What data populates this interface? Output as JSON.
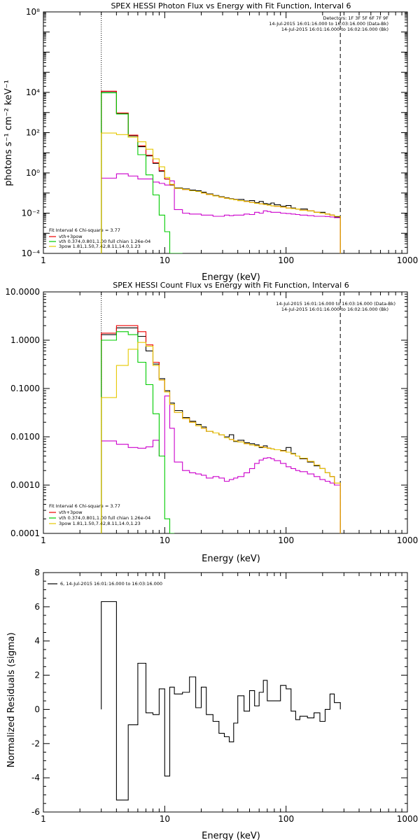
{
  "chart_data": [
    {
      "type": "line",
      "title": "SPEX HESSI Photon Flux vs Energy with Fit Function, Interval 6",
      "xlabel": "Energy (keV)",
      "ylabel": "photons s⁻¹ cm⁻² keV⁻¹",
      "xscale": "log",
      "yscale": "log",
      "xlim": [
        1,
        1000
      ],
      "ylim": [
        0.0001,
        100000000
      ],
      "x_tick_labels": [
        "1",
        "10",
        "100",
        "1000"
      ],
      "y_ticks": [
        0.0001,
        0.01,
        1,
        100,
        10000,
        100000000
      ],
      "y_tick_labels": [
        "10⁻⁴",
        "10⁻²",
        "10⁰",
        "10²",
        "10⁴",
        "10⁸"
      ],
      "vlines": [
        {
          "x": 3,
          "style": "dotted"
        },
        {
          "x": 280,
          "style": "dashed"
        }
      ],
      "header_right": [
        "Detectors: 1F 3F 5F 6F 7F 9F",
        "14-Jul-2015 16:01:16.000 to 16:03:16.000 (Data-Bk)",
        "14-Jul-2015 16:01:16.000 to 16:02:16.000 (Bk)"
      ],
      "fit_label": "Fit Interval 6   Chi-square = 3.77",
      "legend": [
        "vth+3pow",
        "vth 0.374,0.801,1.00  full chian 1.26e-04",
        "3pow 1.81,1.50,7.42,8.11,14.0,1.23"
      ],
      "edges": [
        3,
        4,
        5,
        6,
        7,
        8,
        9,
        10,
        11,
        12,
        14,
        16,
        18,
        20,
        22,
        25,
        28,
        31,
        34,
        37,
        40,
        45,
        50,
        55,
        60,
        65,
        70,
        75,
        80,
        90,
        100,
        110,
        120,
        130,
        150,
        170,
        190,
        210,
        230,
        250,
        280
      ],
      "series": [
        {
          "name": "Data-Bk",
          "color": "#000000",
          "style": "step",
          "values": [
            11000,
            900,
            70,
            20,
            7,
            3,
            1.2,
            0.5,
            0.25,
            0.18,
            0.16,
            0.14,
            0.13,
            0.11,
            0.09,
            0.075,
            0.065,
            0.058,
            0.052,
            0.048,
            0.048,
            0.04,
            0.042,
            0.033,
            0.038,
            0.03,
            0.028,
            0.032,
            0.026,
            0.022,
            0.024,
            0.018,
            0.016,
            0.016,
            0.013,
            0.011,
            0.011,
            0.009,
            0.008,
            0.0065
          ]
        },
        {
          "name": "Bk",
          "color": "#cc00cc",
          "style": "step",
          "values": [
            0.55,
            0.9,
            0.7,
            0.5,
            0.5,
            0.35,
            0.3,
            0.25,
            0.4,
            0.015,
            0.01,
            0.009,
            0.009,
            0.008,
            0.008,
            0.007,
            0.007,
            0.008,
            0.0075,
            0.008,
            0.008,
            0.009,
            0.0085,
            0.011,
            0.01,
            0.013,
            0.012,
            0.011,
            0.011,
            0.01,
            0.0095,
            0.009,
            0.0085,
            0.008,
            0.0075,
            0.007,
            0.007,
            0.0068,
            0.0065,
            0.006
          ]
        },
        {
          "name": "vth+3pow",
          "color": "#ee0000",
          "style": "step",
          "values": [
            11500,
            950,
            75,
            22,
            7.5,
            3.2,
            1.3,
            0.5,
            0.26,
            0.17,
            0.15,
            0.13,
            0.12,
            0.1,
            0.085,
            0.072,
            0.062,
            0.055,
            0.05,
            0.046,
            0.042,
            0.038,
            0.034,
            0.031,
            0.029,
            0.027,
            0.025,
            0.023,
            0.022,
            0.02,
            0.018,
            0.017,
            0.016,
            0.014,
            0.013,
            0.011,
            0.01,
            0.009,
            0.008,
            0.007
          ]
        },
        {
          "name": "vth",
          "color": "#00cc00",
          "style": "step",
          "values": [
            9500,
            850,
            60,
            8,
            0.8,
            0.08,
            0.008,
            0.0012,
            0.0001,
            1e-05
          ]
        },
        {
          "name": "3pow",
          "color": "#e6c800",
          "style": "step",
          "values": [
            95,
            80,
            60,
            35,
            15,
            5,
            2,
            0.6,
            0.27,
            0.17,
            0.15,
            0.13,
            0.12,
            0.1,
            0.085,
            0.072,
            0.062,
            0.055,
            0.05,
            0.046,
            0.042,
            0.038,
            0.034,
            0.031,
            0.029,
            0.027,
            0.025,
            0.023,
            0.022,
            0.02,
            0.018,
            0.017,
            0.016,
            0.014,
            0.013,
            0.011,
            0.01,
            0.009,
            0.008,
            0.007
          ]
        }
      ]
    },
    {
      "type": "line",
      "title": "SPEX HESSI Count Flux vs Energy with Fit Function, Interval 6",
      "xlabel": "Energy (keV)",
      "ylabel": "",
      "xscale": "log",
      "yscale": "log",
      "xlim": [
        1,
        1000
      ],
      "ylim": [
        0.0001,
        10
      ],
      "x_tick_labels": [
        "1",
        "10",
        "100",
        "1000"
      ],
      "y_ticks": [
        0.0001,
        0.001,
        0.01,
        0.1,
        1,
        10
      ],
      "y_tick_labels": [
        "0.0001",
        "0.0010",
        "0.0100",
        "0.1000",
        "1.0000",
        "10.0000"
      ],
      "vlines": [
        {
          "x": 3,
          "style": "dotted"
        },
        {
          "x": 280,
          "style": "dashed"
        }
      ],
      "header_right": [
        "14-Jul-2015 16:01:16.000 to 16:03:16.000 (Data-Bk)",
        "14-Jul-2015 16:01:16.000 to 16:02:16.000 (Bk)"
      ],
      "fit_label": "Fit Interval 6   Chi-square = 3.77",
      "legend": [
        "vth+3pow",
        "vth 0.374,0.801,1.00  full chian 1.26e-04",
        "3pow 1.81,1.50,7.42,8.11,14.0,1.23"
      ],
      "edges": [
        3,
        4,
        5,
        6,
        7,
        8,
        9,
        10,
        11,
        12,
        14,
        16,
        18,
        20,
        22,
        25,
        28,
        31,
        34,
        37,
        40,
        45,
        50,
        55,
        60,
        65,
        70,
        75,
        80,
        90,
        100,
        110,
        120,
        130,
        150,
        170,
        190,
        210,
        230,
        250,
        280
      ],
      "series": [
        {
          "name": "Data-Bk",
          "color": "#000000",
          "style": "step",
          "values": [
            1.3,
            1.8,
            1.8,
            1.2,
            0.6,
            0.32,
            0.16,
            0.09,
            0.05,
            0.035,
            0.025,
            0.021,
            0.018,
            0.016,
            0.013,
            0.012,
            0.011,
            0.01,
            0.011,
            0.008,
            0.0085,
            0.0075,
            0.0072,
            0.0068,
            0.006,
            0.0065,
            0.0058,
            0.0056,
            0.0054,
            0.0052,
            0.006,
            0.0045,
            0.004,
            0.0035,
            0.003,
            0.0025,
            0.0022,
            0.0018,
            0.0015,
            0.001
          ]
        },
        {
          "name": "Bk",
          "color": "#cc00cc",
          "style": "step",
          "values": [
            0.0082,
            0.007,
            0.006,
            0.0058,
            0.0062,
            0.0085,
            0.004,
            0.07,
            0.015,
            0.003,
            0.002,
            0.0018,
            0.0017,
            0.0016,
            0.0014,
            0.0015,
            0.0014,
            0.0012,
            0.0013,
            0.0014,
            0.0015,
            0.0018,
            0.0022,
            0.0028,
            0.0033,
            0.0036,
            0.0037,
            0.0035,
            0.0032,
            0.0028,
            0.0024,
            0.0022,
            0.002,
            0.0019,
            0.0017,
            0.0015,
            0.0013,
            0.0012,
            0.0011,
            0.001
          ]
        },
        {
          "name": "vth+3pow",
          "color": "#ee0000",
          "style": "step",
          "values": [
            1.4,
            2.0,
            2.0,
            1.5,
            0.8,
            0.35,
            0.15,
            0.085,
            0.047,
            0.032,
            0.024,
            0.02,
            0.017,
            0.015,
            0.013,
            0.012,
            0.011,
            0.0095,
            0.0088,
            0.0082,
            0.0078,
            0.0072,
            0.0068,
            0.0065,
            0.0062,
            0.006,
            0.0058,
            0.0056,
            0.0054,
            0.0051,
            0.0048,
            0.0044,
            0.004,
            0.0036,
            0.0031,
            0.0026,
            0.0022,
            0.0018,
            0.0015,
            0.0011
          ]
        },
        {
          "name": "vth",
          "color": "#00cc00",
          "style": "step",
          "values": [
            1.0,
            1.5,
            1.3,
            0.35,
            0.12,
            0.03,
            0.004,
            0.0002,
            1e-05
          ]
        },
        {
          "name": "3pow",
          "color": "#e6c800",
          "style": "step",
          "values": [
            0.065,
            0.3,
            0.65,
            0.9,
            0.75,
            0.3,
            0.15,
            0.085,
            0.047,
            0.032,
            0.024,
            0.02,
            0.017,
            0.015,
            0.013,
            0.012,
            0.011,
            0.0095,
            0.0088,
            0.0082,
            0.0078,
            0.0072,
            0.0068,
            0.0065,
            0.0062,
            0.006,
            0.0058,
            0.0056,
            0.0054,
            0.0051,
            0.0048,
            0.0044,
            0.004,
            0.0036,
            0.0031,
            0.0026,
            0.0022,
            0.0018,
            0.0015,
            0.0011
          ]
        }
      ]
    },
    {
      "type": "line",
      "title": "",
      "xlabel": "Energy (keV)",
      "ylabel": "Normalized Residuals (sigma)",
      "xscale": "log",
      "yscale": "linear",
      "xlim": [
        1,
        1000
      ],
      "ylim": [
        -6,
        8
      ],
      "x_tick_labels": [
        "1",
        "10",
        "100",
        "1000"
      ],
      "y_ticks": [
        -6,
        -4,
        -2,
        0,
        2,
        4,
        6,
        8
      ],
      "y_tick_labels": [
        "-6",
        "-4",
        "-2",
        "0",
        "2",
        "4",
        "6",
        "8"
      ],
      "legend": [
        "6, 14-Jul-2015 16:01:16.000 to 16:03:16.000"
      ],
      "edges": [
        3,
        4,
        5,
        6,
        7,
        8,
        9,
        10,
        11,
        12,
        14,
        16,
        18,
        20,
        22,
        25,
        28,
        31,
        34,
        37,
        40,
        45,
        50,
        55,
        60,
        65,
        70,
        75,
        80,
        90,
        100,
        110,
        120,
        130,
        150,
        170,
        190,
        210,
        230,
        250,
        280
      ],
      "series": [
        {
          "name": "6, 14-Jul-2015 16:01:16.000 to 16:03:16.000",
          "color": "#000000",
          "style": "step",
          "values": [
            6.3,
            -5.3,
            -0.9,
            2.7,
            -0.2,
            -0.3,
            1.2,
            -3.9,
            1.3,
            0.9,
            1.0,
            1.9,
            0.1,
            1.3,
            -0.3,
            -0.7,
            -1.4,
            -1.6,
            -1.9,
            -0.8,
            0.8,
            -0.1,
            1.1,
            0.2,
            1.0,
            1.7,
            0.5,
            0.5,
            0.5,
            1.4,
            1.2,
            -0.1,
            -0.6,
            -0.4,
            -0.5,
            -0.2,
            -0.7,
            0.0,
            0.9,
            0.4
          ]
        }
      ]
    }
  ]
}
